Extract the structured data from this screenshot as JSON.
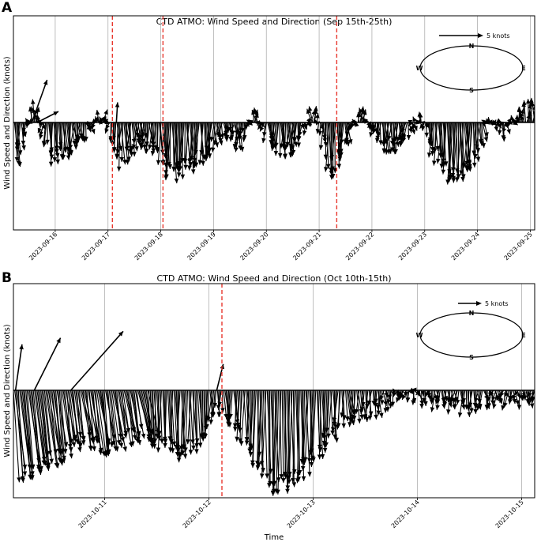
{
  "figure": {
    "xlabel": "Time"
  },
  "chart_data": [
    {
      "panel_label": "A",
      "type": "quiver",
      "title": "CTD ATMO: Wind Speed and Direction (Sep 15th-25th)",
      "ylabel": "Wind Speed and Direction (knots)",
      "x_ticks": [
        "2023-09-16",
        "2023-09-17",
        "2023-09-18",
        "2023-09-19",
        "2023-09-20",
        "2023-09-21",
        "2023-09-22",
        "2023-09-23",
        "2023-09-24",
        "2023-09-25"
      ],
      "xlim": [
        "2023-09-15T05:00",
        "2023-09-25T02:00"
      ],
      "ylim_knots": [
        -10,
        7.5
      ],
      "grid": "vertical",
      "vertical_markers": [
        "2023-09-17T02:00",
        "2023-09-18T01:00",
        "2023-09-21T08:00"
      ],
      "key": {
        "label": "5 knots",
        "speed": 5
      },
      "compass": {
        "N": "N",
        "S": "S",
        "E": "E",
        "W": "W"
      },
      "series": [
        {
          "t_days": [
            0.0,
            0.4,
            0.7,
            1.0,
            1.3,
            1.7,
            2.0,
            2.4,
            2.7,
            3.0,
            3.4,
            3.7,
            4.0,
            4.3,
            4.6,
            4.7,
            5.0,
            5.3,
            5.7,
            6.0,
            6.3,
            6.6,
            7.0,
            7.3,
            7.7,
            8.0,
            8.3,
            8.7,
            9.0,
            9.3,
            9.6,
            9.8
          ],
          "north_component_knots": [
            -8,
            3,
            -6,
            -5,
            -3,
            2,
            -7,
            -3,
            -5,
            -9,
            -7,
            -5,
            -2,
            -4,
            2,
            -1,
            -5,
            -5,
            2,
            -9,
            -4,
            2,
            -4,
            -4,
            1,
            -6,
            -9,
            -8,
            1,
            -2,
            2,
            3
          ]
        }
      ],
      "notable_vectors": [
        {
          "t_days": 0.35,
          "u_knots": 2.5,
          "v_knots": 7.0
        },
        {
          "t_days": 0.45,
          "u_knots": 3.5,
          "v_knots": 1.8
        },
        {
          "t_days": 1.95,
          "u_knots": 0.2,
          "v_knots": 3.3
        }
      ]
    },
    {
      "panel_label": "B",
      "type": "quiver",
      "title": "CTD ATMO: Wind Speed and Direction (Oct 10th-15th)",
      "ylabel": "Wind Speed and Direction (knots)",
      "x_ticks": [
        "2023-10-11",
        "2023-10-12",
        "2023-10-13",
        "2023-10-14",
        "2023-10-15"
      ],
      "xlim": [
        "2023-10-10T03:00",
        "2023-10-15T03:00"
      ],
      "ylim_knots": [
        -17,
        15
      ],
      "grid": "vertical",
      "vertical_markers": [
        "2023-10-12T03:00"
      ],
      "key": {
        "label": "5 knots",
        "speed": 5
      },
      "compass": {
        "N": "N",
        "S": "S",
        "E": "E",
        "W": "W"
      },
      "series": [
        {
          "t_days": [
            0.0,
            0.2,
            0.4,
            0.6,
            0.8,
            1.0,
            1.2,
            1.4,
            1.6,
            1.8,
            1.95,
            2.1,
            2.3,
            2.5,
            2.7,
            2.9,
            3.1,
            3.3,
            3.5,
            3.7,
            4.0,
            4.3,
            4.6,
            4.8,
            5.0
          ],
          "north_component_knots": [
            -13,
            -12,
            -10,
            -8,
            -9,
            -8,
            -7,
            -8,
            -10,
            -8,
            -3,
            -5,
            -10,
            -15,
            -14,
            -10,
            -6,
            -4,
            -3,
            -1,
            -2,
            -3,
            -2,
            -2,
            -2
          ]
        }
      ],
      "notable_vectors": [
        {
          "t_days": 0.02,
          "u_knots": 1.0,
          "v_knots": 7.0
        },
        {
          "t_days": 0.2,
          "u_knots": 4.0,
          "v_knots": 8.0
        },
        {
          "t_days": 0.55,
          "u_knots": 8.0,
          "v_knots": 9.0
        },
        {
          "t_days": 1.95,
          "u_knots": 1.0,
          "v_knots": 4.0
        }
      ]
    }
  ]
}
